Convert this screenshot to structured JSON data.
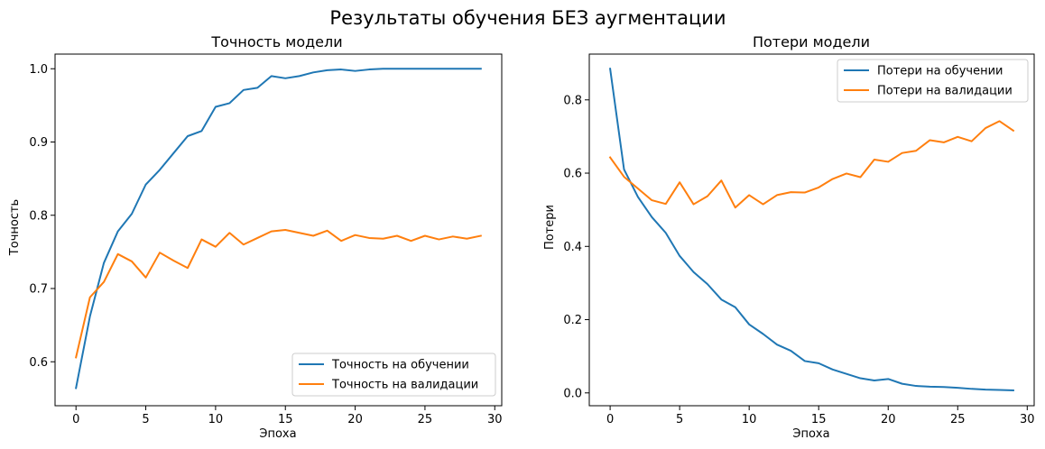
{
  "figure": {
    "title": "Результаты обучения БЕЗ аугментации"
  },
  "colors": {
    "train": "#1f77b4",
    "val": "#ff7f0e"
  },
  "chart_data": [
    {
      "type": "line",
      "title": "Точность модели",
      "xlabel": "Эпоха",
      "ylabel": "Точность",
      "xlim": [
        -1.5,
        30.5
      ],
      "ylim": [
        0.54,
        1.02
      ],
      "xticks": [
        0,
        5,
        10,
        15,
        20,
        25,
        30
      ],
      "yticks": [
        0.6,
        0.7,
        0.8,
        0.9,
        1.0
      ],
      "ytick_labels": [
        "0.6",
        "0.7",
        "0.8",
        "0.9",
        "1.0"
      ],
      "legend": "lower-right",
      "grid": false,
      "x": [
        0,
        1,
        2,
        3,
        4,
        5,
        6,
        7,
        8,
        9,
        10,
        11,
        12,
        13,
        14,
        15,
        16,
        17,
        18,
        19,
        20,
        21,
        22,
        23,
        24,
        25,
        26,
        27,
        28,
        29
      ],
      "series": [
        {
          "name": "Точность на обучении",
          "color": "#1f77b4",
          "values": [
            0.564,
            0.662,
            0.735,
            0.778,
            0.802,
            0.842,
            0.862,
            0.885,
            0.908,
            0.915,
            0.948,
            0.953,
            0.971,
            0.974,
            0.99,
            0.987,
            0.99,
            0.995,
            0.998,
            0.999,
            0.997,
            0.999,
            1.0,
            1.0,
            1.0,
            1.0,
            1.0,
            1.0,
            1.0,
            1.0
          ]
        },
        {
          "name": "Точность на валидации",
          "color": "#ff7f0e",
          "values": [
            0.606,
            0.688,
            0.709,
            0.747,
            0.737,
            0.715,
            0.749,
            0.738,
            0.728,
            0.767,
            0.757,
            0.776,
            0.76,
            0.769,
            0.778,
            0.78,
            0.776,
            0.772,
            0.779,
            0.765,
            0.773,
            0.769,
            0.768,
            0.772,
            0.765,
            0.772,
            0.767,
            0.771,
            0.768,
            0.772
          ]
        }
      ]
    },
    {
      "type": "line",
      "title": "Потери модели",
      "xlabel": "Эпоха",
      "ylabel": "Потери",
      "xlim": [
        -1.5,
        30.5
      ],
      "ylim": [
        -0.035,
        0.925
      ],
      "xticks": [
        0,
        5,
        10,
        15,
        20,
        25,
        30
      ],
      "yticks": [
        0.0,
        0.2,
        0.4,
        0.6,
        0.8
      ],
      "ytick_labels": [
        "0.0",
        "0.2",
        "0.4",
        "0.6",
        "0.8"
      ],
      "legend": "top-right",
      "grid": false,
      "x": [
        0,
        1,
        2,
        3,
        4,
        5,
        6,
        7,
        8,
        9,
        10,
        11,
        12,
        13,
        14,
        15,
        16,
        17,
        18,
        19,
        20,
        21,
        22,
        23,
        24,
        25,
        26,
        27,
        28,
        29
      ],
      "series": [
        {
          "name": "Потери на обучении",
          "color": "#1f77b4",
          "values": [
            0.885,
            0.61,
            0.535,
            0.48,
            0.437,
            0.374,
            0.33,
            0.297,
            0.255,
            0.234,
            0.187,
            0.161,
            0.132,
            0.115,
            0.087,
            0.081,
            0.064,
            0.052,
            0.04,
            0.034,
            0.038,
            0.025,
            0.019,
            0.017,
            0.016,
            0.014,
            0.011,
            0.009,
            0.008,
            0.007
          ]
        },
        {
          "name": "Потери на валидации",
          "color": "#ff7f0e",
          "values": [
            0.643,
            0.59,
            0.558,
            0.526,
            0.516,
            0.575,
            0.515,
            0.537,
            0.58,
            0.506,
            0.54,
            0.515,
            0.54,
            0.548,
            0.547,
            0.561,
            0.584,
            0.599,
            0.589,
            0.637,
            0.631,
            0.655,
            0.661,
            0.69,
            0.684,
            0.699,
            0.687,
            0.723,
            0.742,
            0.716
          ]
        }
      ]
    }
  ]
}
